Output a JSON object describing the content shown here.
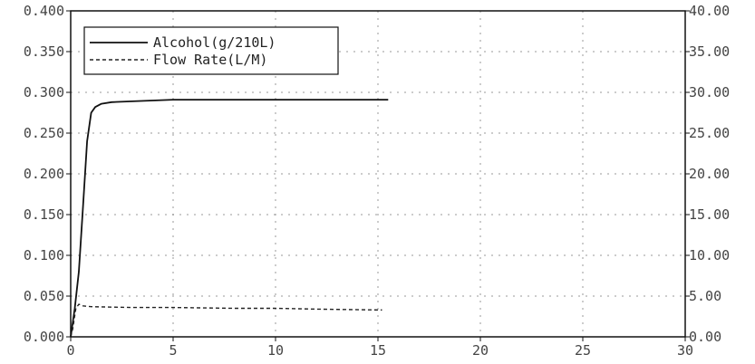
{
  "chart_data": {
    "type": "line",
    "title": "",
    "xlabel": "",
    "ylabel": "",
    "y2label": "",
    "xlim": [
      0,
      30
    ],
    "ylim": [
      0,
      0.4
    ],
    "y2lim": [
      0,
      40
    ],
    "x_ticks": [
      "0",
      "5",
      "10",
      "15",
      "20",
      "25",
      "30"
    ],
    "y_ticks": [
      "0.000",
      "0.050",
      "0.100",
      "0.150",
      "0.200",
      "0.250",
      "0.300",
      "0.350",
      "0.400"
    ],
    "y2_ticks": [
      "0.00",
      "5.00",
      "10.00",
      "15.00",
      "20.00",
      "25.00",
      "30.00",
      "35.00",
      "40.00"
    ],
    "grid": true,
    "legend_position": "top-left",
    "series": [
      {
        "name": "Alcohol(g/210L)",
        "axis": "left",
        "style": "solid",
        "color": "#111111",
        "x": [
          0.0,
          0.2,
          0.4,
          0.6,
          0.8,
          1.0,
          1.2,
          1.5,
          2.0,
          3.0,
          4.0,
          5.0,
          7.0,
          10.0,
          12.0,
          15.0,
          15.5
        ],
        "y": [
          0.0,
          0.035,
          0.08,
          0.16,
          0.24,
          0.275,
          0.282,
          0.286,
          0.288,
          0.289,
          0.29,
          0.291,
          0.291,
          0.291,
          0.291,
          0.291,
          0.291
        ]
      },
      {
        "name": "Flow Rate(L/M)",
        "axis": "right",
        "style": "dashed",
        "color": "#222222",
        "x": [
          0.0,
          0.1,
          0.25,
          0.4,
          0.6,
          1.0,
          3.0,
          5.0,
          8.0,
          10.0,
          12.0,
          15.0,
          15.2
        ],
        "y": [
          0.0,
          1.0,
          3.5,
          4.0,
          3.8,
          3.7,
          3.6,
          3.6,
          3.5,
          3.5,
          3.4,
          3.3,
          3.3
        ]
      }
    ]
  }
}
